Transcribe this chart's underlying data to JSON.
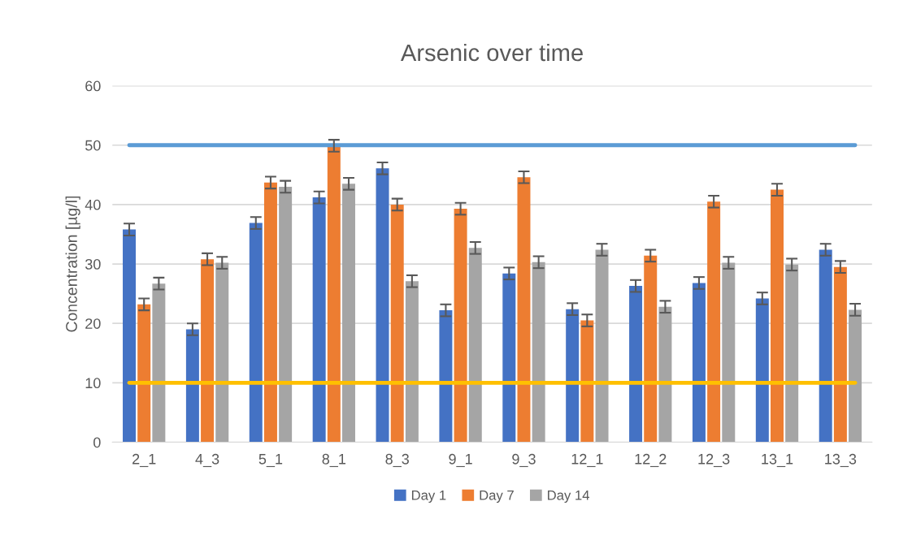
{
  "chart_data": {
    "type": "bar",
    "title": "Arsenic over time",
    "ylabel": "Concentration [µg/l]",
    "categories": [
      "2_1",
      "4_3",
      "5_1",
      "8_1",
      "8_3",
      "9_1",
      "9_3",
      "12_1",
      "12_2",
      "12_3",
      "13_1",
      "13_3"
    ],
    "series": [
      {
        "name": "Day 1",
        "color": "#4472c4",
        "values": [
          35.8,
          19.0,
          36.9,
          41.2,
          46.1,
          22.2,
          28.4,
          22.4,
          26.3,
          26.8,
          24.2,
          32.4
        ],
        "errors": [
          1,
          1,
          1,
          1,
          1,
          1,
          1,
          1,
          1,
          1,
          1,
          1
        ]
      },
      {
        "name": "Day 7",
        "color": "#ed7d31",
        "values": [
          23.2,
          30.8,
          43.7,
          49.9,
          40.0,
          39.3,
          44.6,
          20.5,
          31.4,
          40.5,
          42.5,
          29.5
        ],
        "errors": [
          1,
          1,
          1,
          1,
          1,
          1,
          1,
          1,
          1,
          1,
          1,
          1
        ]
      },
      {
        "name": "Day 14",
        "color": "#a5a5a5",
        "values": [
          26.7,
          30.2,
          43.0,
          43.5,
          27.1,
          32.7,
          30.3,
          32.4,
          22.8,
          30.2,
          29.9,
          22.3
        ],
        "errors": [
          1,
          1,
          1,
          1,
          1,
          1,
          1,
          1,
          1,
          1,
          1,
          1
        ]
      }
    ],
    "ylim": [
      0,
      60
    ],
    "yticks": [
      0,
      10,
      20,
      30,
      40,
      50,
      60
    ],
    "grid": "y",
    "legend": "bottom",
    "ref_lines": [
      {
        "axis": "y",
        "value": 50,
        "color": "#5b9bd5"
      },
      {
        "axis": "y",
        "value": 10,
        "color": "#ffc000"
      }
    ]
  }
}
